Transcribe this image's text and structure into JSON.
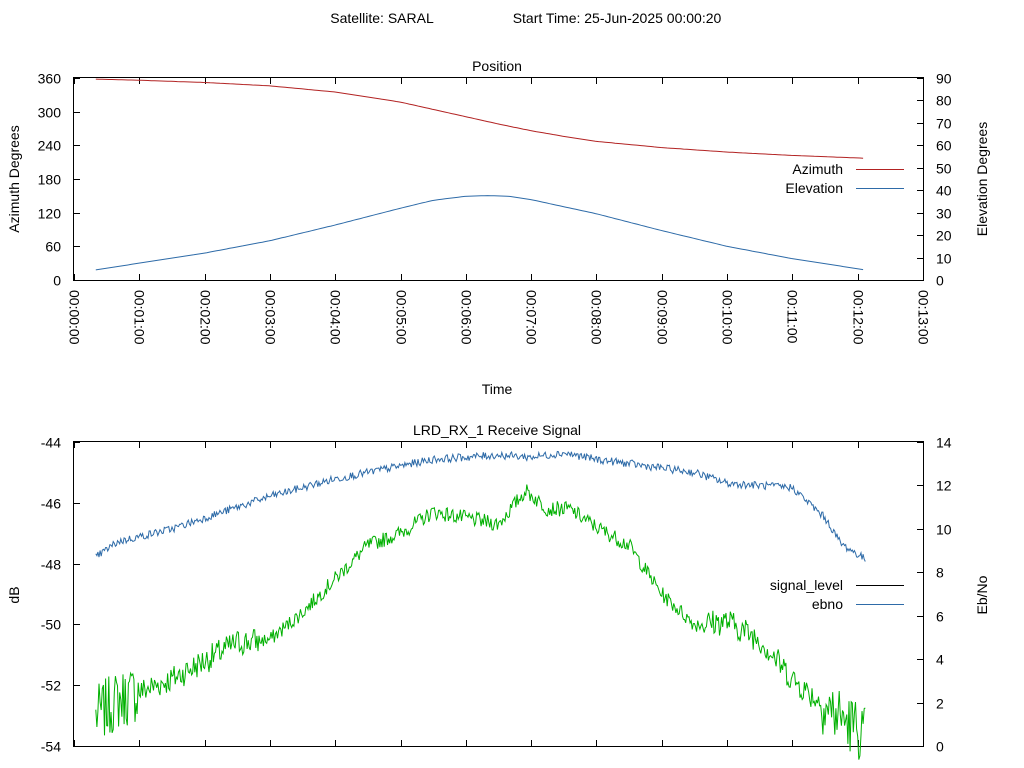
{
  "figure": {
    "satellite_label": "Satellite: SARAL",
    "start_time_label": "Start Time: 25-Jun-2025 00:00:20"
  },
  "colors": {
    "azimuth": "#b22222",
    "elevation": "#2e6ba8",
    "signal_level": "#000000",
    "ebno": "#2e6ba8",
    "signal_trace": "#00b000"
  },
  "chart_data": [
    {
      "type": "line",
      "title": "Position",
      "xlabel": "Time",
      "ylabel": "Azimuth Degrees",
      "y2label": "Elevation Degrees",
      "xlim_seconds": [
        0,
        780
      ],
      "ylim": [
        0,
        360
      ],
      "y2lim": [
        0,
        90
      ],
      "yticks": [
        "0",
        "60",
        "120",
        "180",
        "240",
        "300",
        "360"
      ],
      "y2ticks": [
        "0",
        "10",
        "20",
        "30",
        "40",
        "50",
        "60",
        "70",
        "80",
        "90"
      ],
      "xticks": [
        "00:00:00",
        "00:01:00",
        "00:02:00",
        "00:03:00",
        "00:04:00",
        "00:05:00",
        "00:06:00",
        "00:07:00",
        "00:08:00",
        "00:09:00",
        "00:10:00",
        "00:11:00",
        "00:12:00",
        "00:13:00"
      ],
      "legend_position": "right",
      "series": [
        {
          "name": "Azimuth",
          "axis": "left",
          "x": [
            "00:00:20",
            "00:01:00",
            "00:02:00",
            "00:03:00",
            "00:04:00",
            "00:05:00",
            "00:05:30",
            "00:06:00",
            "00:06:30",
            "00:07:00",
            "00:07:30",
            "00:08:00",
            "00:09:00",
            "00:10:00",
            "00:11:00",
            "00:12:07"
          ],
          "values": [
            358,
            356,
            352,
            346,
            335,
            317,
            304,
            291,
            278,
            266,
            256,
            247,
            236,
            228,
            222,
            217
          ]
        },
        {
          "name": "Elevation",
          "axis": "right",
          "x": [
            "00:00:20",
            "00:01:00",
            "00:02:00",
            "00:03:00",
            "00:04:00",
            "00:05:00",
            "00:05:30",
            "00:06:00",
            "00:06:20",
            "00:06:40",
            "00:07:00",
            "00:08:00",
            "00:09:00",
            "00:10:00",
            "00:11:00",
            "00:12:07"
          ],
          "values": [
            4.5,
            7.5,
            12,
            17.5,
            24.5,
            32,
            35.5,
            37.3,
            37.6,
            37.3,
            35.8,
            29.5,
            22,
            15,
            9.5,
            4.5
          ]
        }
      ]
    },
    {
      "type": "line",
      "title": "LRD_RX_1 Receive Signal",
      "ylabel": "dB",
      "y2label": "Eb/No",
      "xlim_seconds": [
        0,
        780
      ],
      "ylim": [
        -54,
        -44
      ],
      "y2lim": [
        0,
        14
      ],
      "yticks": [
        "-54",
        "-52",
        "-50",
        "-48",
        "-46",
        "-44"
      ],
      "y2ticks": [
        "0",
        "2",
        "4",
        "6",
        "8",
        "10",
        "12",
        "14"
      ],
      "legend_position": "right",
      "series": [
        {
          "name": "signal_level",
          "axis": "left",
          "x": [
            "00:00:20",
            "00:00:40",
            "00:01:30",
            "00:02:00",
            "00:02:30",
            "00:03:00",
            "00:03:30",
            "00:04:00",
            "00:04:30",
            "00:05:00",
            "00:05:30",
            "00:06:00",
            "00:06:30",
            "00:06:55",
            "00:07:15",
            "00:07:35",
            "00:08:00",
            "00:08:30",
            "00:09:00",
            "00:09:30",
            "00:10:00",
            "00:10:30",
            "00:11:00",
            "00:11:30",
            "00:12:07"
          ],
          "values": [
            -53,
            -52.5,
            -51.8,
            -51.2,
            -50.6,
            -50.5,
            -49.6,
            -48.5,
            -47.4,
            -47,
            -46.3,
            -46.5,
            -46.7,
            -45.6,
            -46.2,
            -46.2,
            -46.8,
            -47.4,
            -49,
            -50,
            -49.9,
            -50.5,
            -51.8,
            -52.7,
            -53.6
          ]
        },
        {
          "name": "ebno",
          "axis": "right",
          "x": [
            "00:00:20",
            "00:00:40",
            "00:01:30",
            "00:02:00",
            "00:03:00",
            "00:04:00",
            "00:05:00",
            "00:05:30",
            "00:06:00",
            "00:06:30",
            "00:07:00",
            "00:07:30",
            "00:08:00",
            "00:08:30",
            "00:09:00",
            "00:09:30",
            "00:10:00",
            "00:10:30",
            "00:11:00",
            "00:11:30",
            "00:11:45",
            "00:12:07"
          ],
          "values": [
            8.7,
            9.4,
            10,
            10.5,
            11.5,
            12.3,
            12.9,
            13.2,
            13.3,
            13.4,
            13.3,
            13.5,
            13.2,
            13,
            12.8,
            12.6,
            12.1,
            12,
            11.9,
            10.5,
            9.3,
            8.6
          ]
        }
      ]
    }
  ]
}
